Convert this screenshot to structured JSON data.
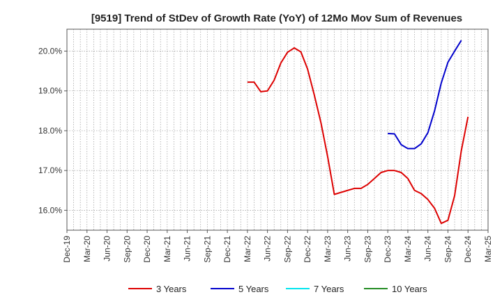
{
  "chart_data": {
    "type": "line",
    "title": "[9519]  Trend of StDev of Growth Rate (YoY) of 12Mo Mov Sum of Revenues",
    "xlabel": "",
    "ylabel": "",
    "ylim": [
      15.5,
      20.55
    ],
    "yticks": [
      16.0,
      17.0,
      18.0,
      19.0,
      20.0
    ],
    "ytick_labels": [
      "16.0%",
      "17.0%",
      "18.0%",
      "19.0%",
      "20.0%"
    ],
    "xtick_labels": [
      "Dec-19",
      "Mar-20",
      "Jun-20",
      "Sep-20",
      "Dec-20",
      "Mar-21",
      "Jun-21",
      "Sep-21",
      "Dec-21",
      "Mar-22",
      "Jun-22",
      "Sep-22",
      "Dec-22",
      "Mar-23",
      "Jun-23",
      "Sep-23",
      "Dec-23",
      "Mar-24",
      "Jun-24",
      "Sep-24",
      "Dec-24",
      "Mar-25"
    ],
    "x_months_start": "Dec-19",
    "x_months_span": 63,
    "grid": true,
    "legend": "bottom",
    "series": [
      {
        "name": "3 Years",
        "color": "#dd0000",
        "x": [
          27,
          28,
          29,
          30,
          31,
          32,
          33,
          34,
          35,
          36,
          37,
          38,
          39,
          40,
          41,
          42,
          43,
          44,
          45,
          46,
          47,
          48,
          49,
          50,
          51,
          52,
          53,
          54,
          55,
          56,
          57,
          58,
          59,
          60
        ],
        "values": [
          19.22,
          19.22,
          18.98,
          19.0,
          19.27,
          19.7,
          19.97,
          20.08,
          19.98,
          19.55,
          18.9,
          18.2,
          17.35,
          16.4,
          16.45,
          16.5,
          16.55,
          16.55,
          16.65,
          16.8,
          16.95,
          17.0,
          17.0,
          16.95,
          16.8,
          16.5,
          16.42,
          16.27,
          16.05,
          15.67,
          15.75,
          16.37,
          17.5,
          18.35
        ]
      },
      {
        "name": "5 Years",
        "color": "#0000cc",
        "x": [
          48,
          49,
          50,
          51,
          52,
          53,
          54,
          55,
          56,
          57,
          58,
          59,
          60,
          61,
          62,
          63
        ],
        "values": [
          17.93,
          17.92,
          17.65,
          17.55,
          17.55,
          17.67,
          17.95,
          18.5,
          19.2,
          19.72,
          20.0,
          20.27,
          null,
          null,
          null,
          null
        ]
      },
      {
        "name": "7 Years",
        "color": "#00e5ee",
        "x": [],
        "values": []
      },
      {
        "name": "10 Years",
        "color": "#228b22",
        "x": [],
        "values": []
      }
    ]
  }
}
